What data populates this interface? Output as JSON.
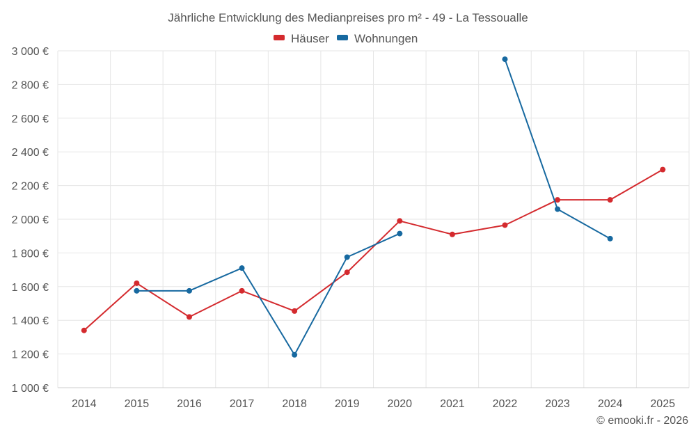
{
  "chart_data": {
    "type": "line",
    "title": "Jährliche Entwicklung des Medianpreises pro m² - 49 - La Tessoualle",
    "categories": [
      "2014",
      "2015",
      "2016",
      "2017",
      "2018",
      "2019",
      "2020",
      "2021",
      "2022",
      "2023",
      "2024",
      "2025"
    ],
    "ylim": [
      1000,
      3000
    ],
    "yticks": [
      1000,
      1200,
      1400,
      1600,
      1800,
      2000,
      2200,
      2400,
      2600,
      2800,
      3000
    ],
    "ytick_labels": [
      "1 000 €",
      "1 200 €",
      "1 400 €",
      "1 600 €",
      "1 800 €",
      "2 000 €",
      "2 200 €",
      "2 400 €",
      "2 600 €",
      "2 800 €",
      "3 000 €"
    ],
    "legend_position": "top-center",
    "grid": true,
    "series": [
      {
        "name": "Häuser",
        "color": "#d42a2e",
        "values": [
          1340,
          1620,
          1420,
          1575,
          1455,
          1685,
          1990,
          1910,
          1965,
          2115,
          2115,
          2295
        ]
      },
      {
        "name": "Wohnungen",
        "color": "#1769a0",
        "values": [
          null,
          1575,
          1575,
          1710,
          1195,
          1775,
          1915,
          null,
          2950,
          2060,
          1885,
          null
        ]
      }
    ]
  },
  "credit": "© emooki.fr - 2026"
}
